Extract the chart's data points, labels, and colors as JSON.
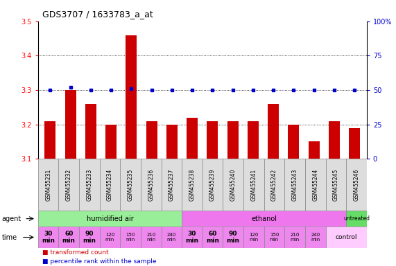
{
  "title": "GDS3707 / 1633783_a_at",
  "samples": [
    "GSM455231",
    "GSM455232",
    "GSM455233",
    "GSM455234",
    "GSM455235",
    "GSM455236",
    "GSM455237",
    "GSM455238",
    "GSM455239",
    "GSM455240",
    "GSM455241",
    "GSM455242",
    "GSM455243",
    "GSM455244",
    "GSM455245",
    "GSM455246"
  ],
  "transformed_count": [
    3.21,
    3.3,
    3.26,
    3.2,
    3.46,
    3.21,
    3.2,
    3.22,
    3.21,
    3.21,
    3.21,
    3.26,
    3.2,
    3.15,
    3.21,
    3.19
  ],
  "percentile_rank": [
    50,
    52,
    50,
    50,
    51,
    50,
    50,
    50,
    50,
    50,
    50,
    50,
    50,
    50,
    50,
    50
  ],
  "ylim_left": [
    3.1,
    3.5
  ],
  "ylim_right": [
    0,
    100
  ],
  "yticks_left": [
    3.1,
    3.2,
    3.3,
    3.4,
    3.5
  ],
  "yticks_right": [
    0,
    25,
    50,
    75,
    100
  ],
  "bar_color": "#cc0000",
  "dot_color": "#0000cc",
  "humidified_color": "#99ee99",
  "ethanol_color": "#ee77ee",
  "untreated_color": "#66dd66",
  "time_cell_color": "#ee88ee",
  "control_cell_color": "#ffccff",
  "sample_box_color": "#dddddd",
  "title_fontsize": 9,
  "legend_items": [
    {
      "color": "#cc0000",
      "label": "transformed count"
    },
    {
      "color": "#0000cc",
      "label": "percentile rank within the sample"
    }
  ]
}
